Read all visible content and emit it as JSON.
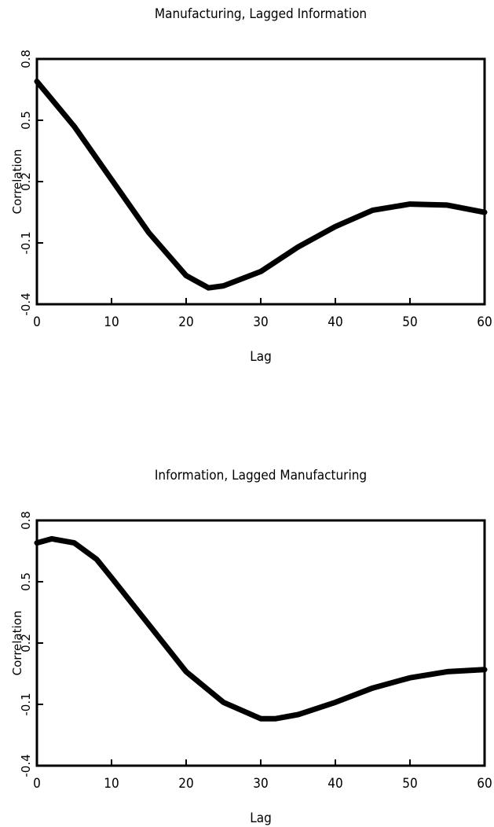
{
  "chart_data": [
    {
      "type": "line",
      "title": "Manufacturing, Lagged Information",
      "xlabel": "Lag",
      "ylabel": "Correlation",
      "x": [
        0,
        5,
        10,
        15,
        20,
        23,
        25,
        30,
        35,
        40,
        45,
        50,
        55,
        60
      ],
      "series": [
        {
          "color": "#000000",
          "values": [
            0.69,
            0.47,
            0.21,
            -0.05,
            -0.26,
            -0.32,
            -0.31,
            -0.24,
            -0.12,
            -0.02,
            0.06,
            0.09,
            0.085,
            0.05
          ]
        }
      ],
      "xlim": [
        0,
        60
      ],
      "xticks": [
        0,
        10,
        20,
        30,
        40,
        50,
        60
      ],
      "ylim": [
        -0.4,
        0.8
      ],
      "yticks": [
        -0.4,
        -0.1,
        0.2,
        0.5,
        0.8
      ]
    },
    {
      "type": "line",
      "title": "Information, Lagged Manufacturing",
      "xlabel": "Lag",
      "ylabel": "Correlation",
      "x": [
        0,
        2,
        5,
        8,
        10,
        15,
        20,
        25,
        30,
        32,
        35,
        40,
        45,
        50,
        55,
        60
      ],
      "series": [
        {
          "color": "#000000",
          "values": [
            0.69,
            0.71,
            0.69,
            0.61,
            0.52,
            0.29,
            0.06,
            -0.09,
            -0.17,
            -0.17,
            -0.15,
            -0.09,
            -0.02,
            0.03,
            0.06,
            0.07
          ]
        }
      ],
      "xlim": [
        0,
        60
      ],
      "xticks": [
        0,
        10,
        20,
        30,
        40,
        50,
        60
      ],
      "ylim": [
        -0.4,
        0.8
      ],
      "yticks": [
        -0.4,
        -0.1,
        0.2,
        0.5,
        0.8
      ]
    }
  ]
}
